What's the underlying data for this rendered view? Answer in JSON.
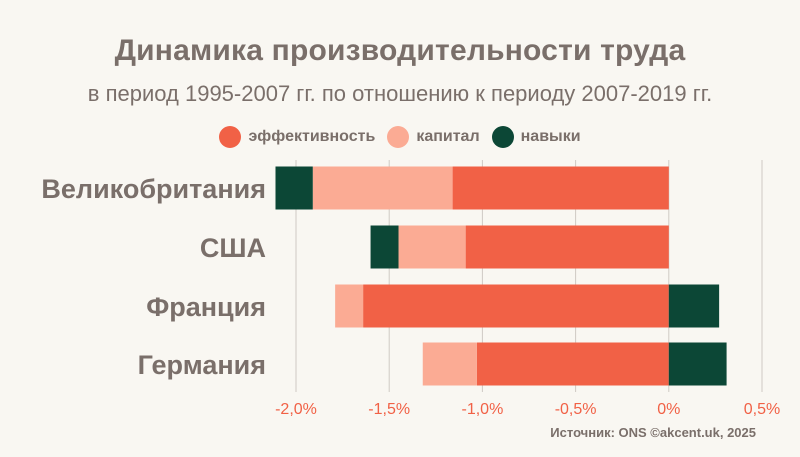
{
  "chart_data": {
    "type": "bar",
    "orientation": "horizontal",
    "stacked": true,
    "title": "Динамика производительности труда",
    "subtitle": "в период 1995-2007 гг. по отношению к периоду 2007-2019 гг.",
    "categories": [
      "Великобритания",
      "США",
      "Франция",
      "Германия"
    ],
    "series": [
      {
        "name": "эффективность",
        "color": "#f16146",
        "values": [
          -1.16,
          -1.09,
          -1.64,
          -1.03
        ]
      },
      {
        "name": "капитал",
        "color": "#fbab94",
        "values": [
          -0.75,
          -0.36,
          -0.15,
          -0.29
        ]
      },
      {
        "name": "навыки",
        "color": "#0c4736",
        "values": [
          -0.2,
          -0.15,
          0.27,
          0.31
        ]
      }
    ],
    "xlim": [
      -2.0,
      0.5
    ],
    "x_ticks": [
      "-2,0%",
      "-1,5%",
      "-1,0%",
      "-0,5%",
      "0%",
      "0,5%"
    ],
    "x_tick_values": [
      -2.0,
      -1.5,
      -1.0,
      -0.5,
      0,
      0.5
    ],
    "grid": true,
    "legend_position": "top-center"
  },
  "source": "Источник: ONS  ©akcent.uk, 2025"
}
